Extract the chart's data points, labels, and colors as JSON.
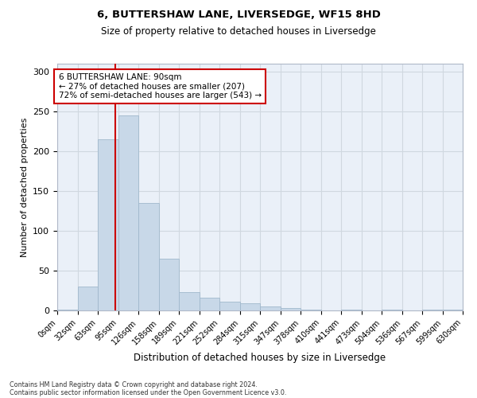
{
  "title1": "6, BUTTERSHAW LANE, LIVERSEDGE, WF15 8HD",
  "title2": "Size of property relative to detached houses in Liversedge",
  "xlabel": "Distribution of detached houses by size in Liversedge",
  "ylabel": "Number of detached properties",
  "bin_edges": [
    0,
    32,
    63,
    95,
    126,
    158,
    189,
    221,
    252,
    284,
    315,
    347,
    378,
    410,
    441,
    473,
    504,
    536,
    567,
    599,
    630
  ],
  "bar_heights": [
    1,
    30,
    215,
    245,
    135,
    65,
    23,
    16,
    11,
    9,
    5,
    3,
    1,
    0,
    1,
    0,
    1,
    0,
    1,
    1
  ],
  "bar_color": "#c8d8e8",
  "bar_edgecolor": "#a0b8cc",
  "property_size": 90,
  "annotation_text": "6 BUTTERSHAW LANE: 90sqm\n← 27% of detached houses are smaller (207)\n72% of semi-detached houses are larger (543) →",
  "annotation_box_color": "#ffffff",
  "annotation_box_edgecolor": "#cc0000",
  "red_line_color": "#cc0000",
  "grid_color": "#d0d8e0",
  "bg_color": "#eaf0f8",
  "footnote1": "Contains HM Land Registry data © Crown copyright and database right 2024.",
  "footnote2": "Contains public sector information licensed under the Open Government Licence v3.0.",
  "ylim": [
    0,
    310
  ],
  "yticks": [
    0,
    50,
    100,
    150,
    200,
    250,
    300
  ]
}
